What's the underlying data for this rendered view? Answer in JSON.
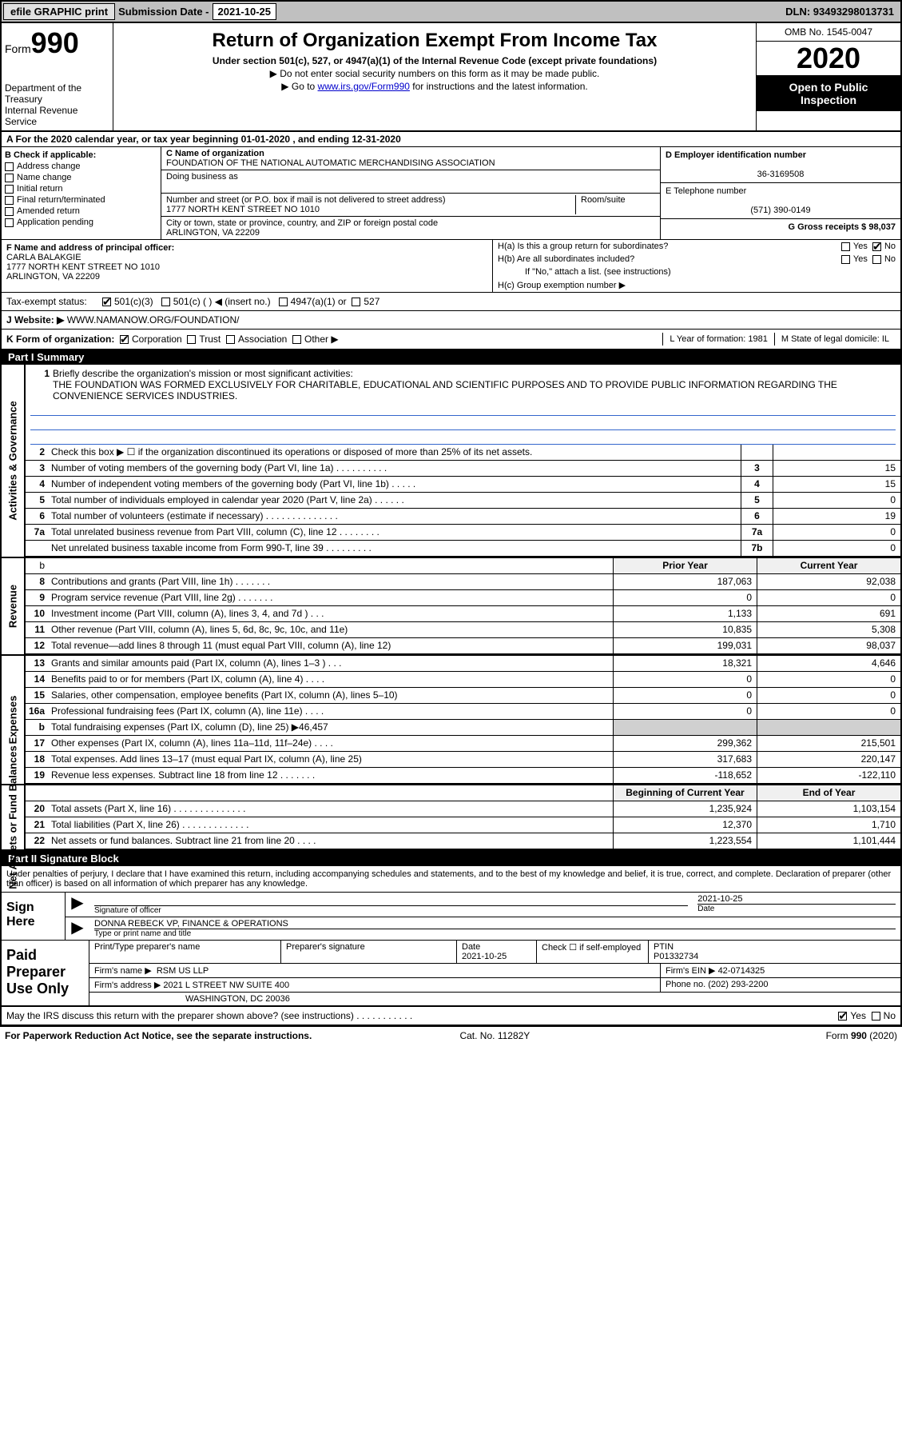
{
  "topbar": {
    "efile": "efile GRAPHIC print",
    "subdate_label": "Submission Date - ",
    "subdate": "2021-10-25",
    "dln": "DLN: 93493298013731"
  },
  "header": {
    "form_prefix": "Form",
    "form_no": "990",
    "dept": "Department of the Treasury\nInternal Revenue Service",
    "title": "Return of Organization Exempt From Income Tax",
    "sub": "Under section 501(c), 527, or 4947(a)(1) of the Internal Revenue Code (except private foundations)",
    "line2": "▶ Do not enter social security numbers on this form as it may be made public.",
    "line3_pre": "▶ Go to ",
    "line3_link": "www.irs.gov/Form990",
    "line3_post": " for instructions and the latest information.",
    "omb": "OMB No. 1545-0047",
    "year": "2020",
    "open": "Open to Public Inspection"
  },
  "period": "A For the 2020 calendar year, or tax year beginning 01-01-2020    , and ending 12-31-2020",
  "sectionB": {
    "label": "B Check if applicable:",
    "items": [
      "Address change",
      "Name change",
      "Initial return",
      "Final return/terminated",
      "Amended return",
      "Application pending"
    ]
  },
  "sectionC": {
    "name_label": "C Name of organization",
    "name": "FOUNDATION OF THE NATIONAL AUTOMATIC MERCHANDISING ASSOCIATION",
    "dba_label": "Doing business as",
    "dba": "",
    "addr_label": "Number and street (or P.O. box if mail is not delivered to street address)",
    "room_label": "Room/suite",
    "addr": "1777 NORTH KENT STREET NO 1010",
    "city_label": "City or town, state or province, country, and ZIP or foreign postal code",
    "city": "ARLINGTON, VA  22209"
  },
  "sectionD": {
    "label": "D Employer identification number",
    "value": "36-3169508"
  },
  "sectionE": {
    "label": "E Telephone number",
    "value": "(571) 390-0149"
  },
  "sectionG": {
    "label": "G Gross receipts $ 98,037"
  },
  "sectionF": {
    "label": "F  Name and address of principal officer:",
    "name": "CARLA BALAKGIE",
    "addr": "1777 NORTH KENT STREET NO 1010\nARLINGTON, VA  22209"
  },
  "sectionH": {
    "a": "H(a)  Is this a group return for subordinates?",
    "b": "H(b)  Are all subordinates included?",
    "b2": "If \"No,\" attach a list. (see instructions)",
    "c": "H(c)  Group exemption number ▶"
  },
  "taxExempt": {
    "label": "Tax-exempt status:",
    "opts": [
      "501(c)(3)",
      "501(c) (  ) ◀ (insert no.)",
      "4947(a)(1) or",
      "527"
    ]
  },
  "website_label": "J   Website: ▶",
  "website": "WWW.NAMANOW.ORG/FOUNDATION/",
  "korg": {
    "label": "K Form of organization:",
    "opts": [
      "Corporation",
      "Trust",
      "Association",
      "Other ▶"
    ],
    "L": "L Year of formation: 1981",
    "M": "M State of legal domicile: IL"
  },
  "partI": "Part I      Summary",
  "brief": {
    "num": "1",
    "label": "Briefly describe the organization's mission or most significant activities:",
    "text": "THE FOUNDATION WAS FORMED EXCLUSIVELY FOR CHARITABLE, EDUCATIONAL AND SCIENTIFIC PURPOSES AND TO PROVIDE PUBLIC INFORMATION REGARDING THE CONVENIENCE SERVICES INDUSTRIES."
  },
  "governance": {
    "label": "Activities & Governance",
    "lines": [
      {
        "n": "2",
        "d": "Check this box ▶ ☐  if the organization discontinued its operations or disposed of more than 25% of its net assets.",
        "box": "",
        "v": ""
      },
      {
        "n": "3",
        "d": "Number of voting members of the governing body (Part VI, line 1a)   .    .    .    .    .    .    .    .    .    .",
        "box": "3",
        "v": "15"
      },
      {
        "n": "4",
        "d": "Number of independent voting members of the governing body (Part VI, line 1b)  .    .    .    .    .",
        "box": "4",
        "v": "15"
      },
      {
        "n": "5",
        "d": "Total number of individuals employed in calendar year 2020 (Part V, line 2a)   .    .    .    .    .    .",
        "box": "5",
        "v": "0"
      },
      {
        "n": "6",
        "d": "Total number of volunteers (estimate if necessary)    .    .    .    .    .    .    .    .    .    .    .    .    .    .",
        "box": "6",
        "v": "19"
      },
      {
        "n": "7a",
        "d": "Total unrelated business revenue from Part VIII, column (C), line 12    .    .    .    .    .    .    .    .",
        "box": "7a",
        "v": "0"
      },
      {
        "n": "",
        "d": "Net unrelated business taxable income from Form 990-T, line 39    .    .    .    .    .    .    .    .    .",
        "box": "7b",
        "v": "0"
      }
    ]
  },
  "twoColHdr": {
    "prior": "Prior Year",
    "curr": "Current Year"
  },
  "revenue": {
    "label": "Revenue",
    "lines": [
      {
        "n": "8",
        "d": "Contributions and grants (Part VIII, line 1h)   .    .    .    .    .    .    .",
        "p": "187,063",
        "c": "92,038"
      },
      {
        "n": "9",
        "d": "Program service revenue (Part VIII, line 2g)   .    .    .    .    .    .    .",
        "p": "0",
        "c": "0"
      },
      {
        "n": "10",
        "d": "Investment income (Part VIII, column (A), lines 3, 4, and 7d )   .    .    .",
        "p": "1,133",
        "c": "691"
      },
      {
        "n": "11",
        "d": "Other revenue (Part VIII, column (A), lines 5, 6d, 8c, 9c, 10c, and 11e)",
        "p": "10,835",
        "c": "5,308"
      },
      {
        "n": "12",
        "d": "Total revenue—add lines 8 through 11 (must equal Part VIII, column (A), line 12)",
        "p": "199,031",
        "c": "98,037"
      }
    ]
  },
  "expenses": {
    "label": "Expenses",
    "lines": [
      {
        "n": "13",
        "d": "Grants and similar amounts paid (Part IX, column (A), lines 1–3 )   .    .    .",
        "p": "18,321",
        "c": "4,646"
      },
      {
        "n": "14",
        "d": "Benefits paid to or for members (Part IX, column (A), line 4)   .    .    .    .",
        "p": "0",
        "c": "0"
      },
      {
        "n": "15",
        "d": "Salaries, other compensation, employee benefits (Part IX, column (A), lines 5–10)",
        "p": "0",
        "c": "0"
      },
      {
        "n": "16a",
        "d": "Professional fundraising fees (Part IX, column (A), line 11e)   .    .    .    .",
        "p": "0",
        "c": "0"
      },
      {
        "n": "b",
        "d": "Total fundraising expenses (Part IX, column (D), line 25) ▶46,457",
        "p": "GRAY",
        "c": "GRAY"
      },
      {
        "n": "17",
        "d": "Other expenses (Part IX, column (A), lines 11a–11d, 11f–24e)   .    .    .    .",
        "p": "299,362",
        "c": "215,501"
      },
      {
        "n": "18",
        "d": "Total expenses. Add lines 13–17 (must equal Part IX, column (A), line 25)",
        "p": "317,683",
        "c": "220,147"
      },
      {
        "n": "19",
        "d": "Revenue less expenses. Subtract line 18 from line 12   .    .    .    .    .    .    .",
        "p": "-118,652",
        "c": "-122,110"
      }
    ]
  },
  "netassets": {
    "label": "Net Assets or Fund Balances",
    "hdr": {
      "prior": "Beginning of Current Year",
      "curr": "End of Year"
    },
    "lines": [
      {
        "n": "20",
        "d": "Total assets (Part X, line 16)   .    .    .    .    .    .    .    .    .    .    .    .    .    .",
        "p": "1,235,924",
        "c": "1,103,154"
      },
      {
        "n": "21",
        "d": "Total liabilities (Part X, line 26)   .    .    .    .    .    .    .    .    .    .    .    .    .",
        "p": "12,370",
        "c": "1,710"
      },
      {
        "n": "22",
        "d": "Net assets or fund balances. Subtract line 21 from line 20   .    .    .    .",
        "p": "1,223,554",
        "c": "1,101,444"
      }
    ]
  },
  "partII": "Part II      Signature Block",
  "sigPara": "Under penalties of perjury, I declare that I have examined this return, including accompanying schedules and statements, and to the best of my knowledge and belief, it is true, correct, and complete. Declaration of preparer (other than officer) is based on all information of which preparer has any knowledge.",
  "sign": {
    "left": "Sign Here",
    "officer_label": "Signature of officer",
    "date": "2021-10-25",
    "date_label": "Date",
    "name": "DONNA REBECK VP, FINANCE & OPERATIONS",
    "name_label": "Type or print name and title"
  },
  "prep": {
    "left": "Paid Preparer Use Only",
    "r1": {
      "c1": "Print/Type preparer's name",
      "c2": "Preparer's signature",
      "c3": "Date",
      "c3v": "2021-10-25",
      "c4": "Check ☐ if self-employed",
      "c5": "PTIN",
      "c5v": "P01332734"
    },
    "r2": {
      "label": "Firm's name    ▶",
      "val": "RSM US LLP",
      "ein_label": "Firm's EIN ▶",
      "ein": "42-0714325"
    },
    "r3": {
      "label": "Firm's address ▶",
      "val": "2021 L STREET NW SUITE 400",
      "phone_label": "Phone no.",
      "phone": "(202) 293-2200"
    },
    "r3b": "WASHINGTON, DC  20036"
  },
  "discuss": "May the IRS discuss this return with the preparer shown above? (see instructions)   .    .    .    .    .    .    .    .    .    .    .",
  "footer": {
    "left": "For Paperwork Reduction Act Notice, see the separate instructions.",
    "mid": "Cat. No. 11282Y",
    "right": "Form 990 (2020)"
  }
}
